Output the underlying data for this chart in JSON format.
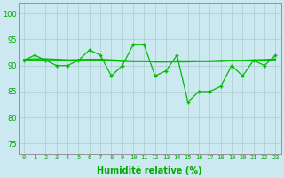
{
  "line1": [
    91,
    92,
    91,
    90,
    90,
    91,
    93,
    92,
    88,
    90,
    94,
    94,
    88,
    89,
    92,
    83,
    85,
    85,
    86,
    90,
    88,
    91,
    90,
    92
  ],
  "line2_slope": [
    91.0,
    91.1,
    91.2,
    91.1,
    91.0,
    91.1,
    91.2,
    91.1,
    91.0,
    90.9,
    90.8,
    90.8,
    90.7,
    90.7,
    90.8,
    90.8,
    90.8,
    90.8,
    90.9,
    90.9,
    90.9,
    91.0,
    91.0,
    91.1
  ],
  "line3_slope": [
    91.2,
    91.3,
    91.3,
    91.2,
    91.1,
    91.1,
    91.2,
    91.2,
    91.1,
    91.0,
    90.9,
    90.9,
    90.8,
    90.8,
    90.9,
    90.9,
    90.9,
    90.9,
    91.0,
    91.0,
    91.0,
    91.1,
    91.1,
    91.2
  ],
  "line4_slope": [
    91.0,
    91.0,
    91.0,
    90.9,
    90.9,
    90.9,
    91.0,
    91.0,
    90.9,
    90.8,
    90.8,
    90.8,
    90.7,
    90.7,
    90.7,
    90.7,
    90.8,
    90.8,
    90.8,
    90.9,
    90.9,
    91.0,
    91.1,
    91.3
  ],
  "x": [
    0,
    1,
    2,
    3,
    4,
    5,
    6,
    7,
    8,
    9,
    10,
    11,
    12,
    13,
    14,
    15,
    16,
    17,
    18,
    19,
    20,
    21,
    22,
    23
  ],
  "xtick_labels": [
    "0",
    "1",
    "2",
    "3",
    "4",
    "5",
    "6",
    "7",
    "8",
    "9",
    "10",
    "11",
    "12",
    "13",
    "14",
    "15",
    "16",
    "17",
    "18",
    "19",
    "20",
    "21",
    "22",
    "23"
  ],
  "ylim": [
    73,
    102
  ],
  "yticks": [
    75,
    80,
    85,
    90,
    95,
    100
  ],
  "xlabel": "Humidité relative (%)",
  "line_color": "#00bb00",
  "marker": "+",
  "bg_color": "#cce8f0",
  "grid_color": "#aacccc",
  "axis_color": "#888888",
  "tick_color": "#00aa00",
  "label_color": "#00aa00"
}
